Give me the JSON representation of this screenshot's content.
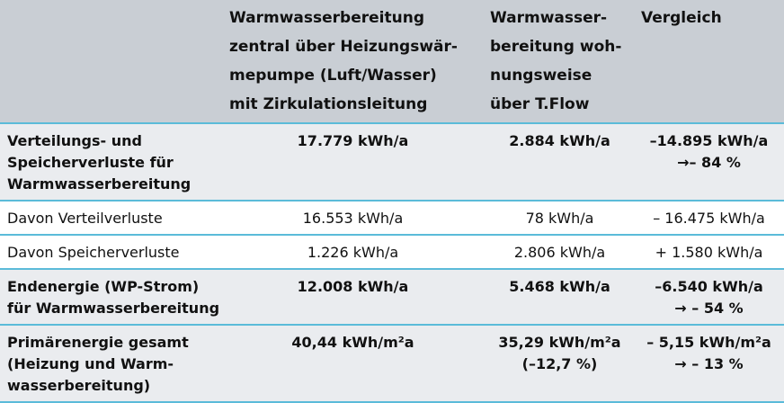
{
  "table": {
    "header": [
      [],
      [
        "Warmwasserbereitung",
        "zentral über Heizungswär-",
        "mepumpe (Luft/Wasser)",
        "mit Zirkulationsleitung"
      ],
      [
        "Warmwasser-",
        "bereitung woh-",
        "nungsweise",
        "über T.Flow"
      ],
      [
        "Vergleich"
      ]
    ],
    "rows": [
      [
        [
          "Verteilungs- und",
          "Speicherverluste für",
          "Warmwasserbereitung"
        ],
        [
          "17.779 kWh/a"
        ],
        [
          "2.884 kWh/a"
        ],
        [
          "–14.895 kWh/a",
          "→– 84 %"
        ]
      ],
      [
        [
          "Davon Verteilverluste"
        ],
        [
          "16.553 kWh/a"
        ],
        [
          "78 kWh/a"
        ],
        [
          "– 16.475 kWh/a"
        ]
      ],
      [
        [
          "Davon Speicherverluste"
        ],
        [
          "1.226 kWh/a"
        ],
        [
          "2.806 kWh/a"
        ],
        [
          "+ 1.580 kWh/a"
        ]
      ],
      [
        [
          "Endenergie (WP-Strom)",
          "für Warmwasserbereitung"
        ],
        [
          "12.008 kWh/a"
        ],
        [
          "5.468 kWh/a"
        ],
        [
          "–6.540 kWh/a",
          "→ – 54 %"
        ]
      ],
      [
        [
          "Primärenergie gesamt",
          "(Heizung und Warm-",
          "wasserbereitung)"
        ],
        [
          "40,44 kWh/m²a"
        ],
        [
          "35,29 kWh/m²a",
          "(–12,7 %)"
        ],
        [
          "– 5,15 kWh/m²a",
          "→ – 13 %"
        ]
      ]
    ]
  }
}
